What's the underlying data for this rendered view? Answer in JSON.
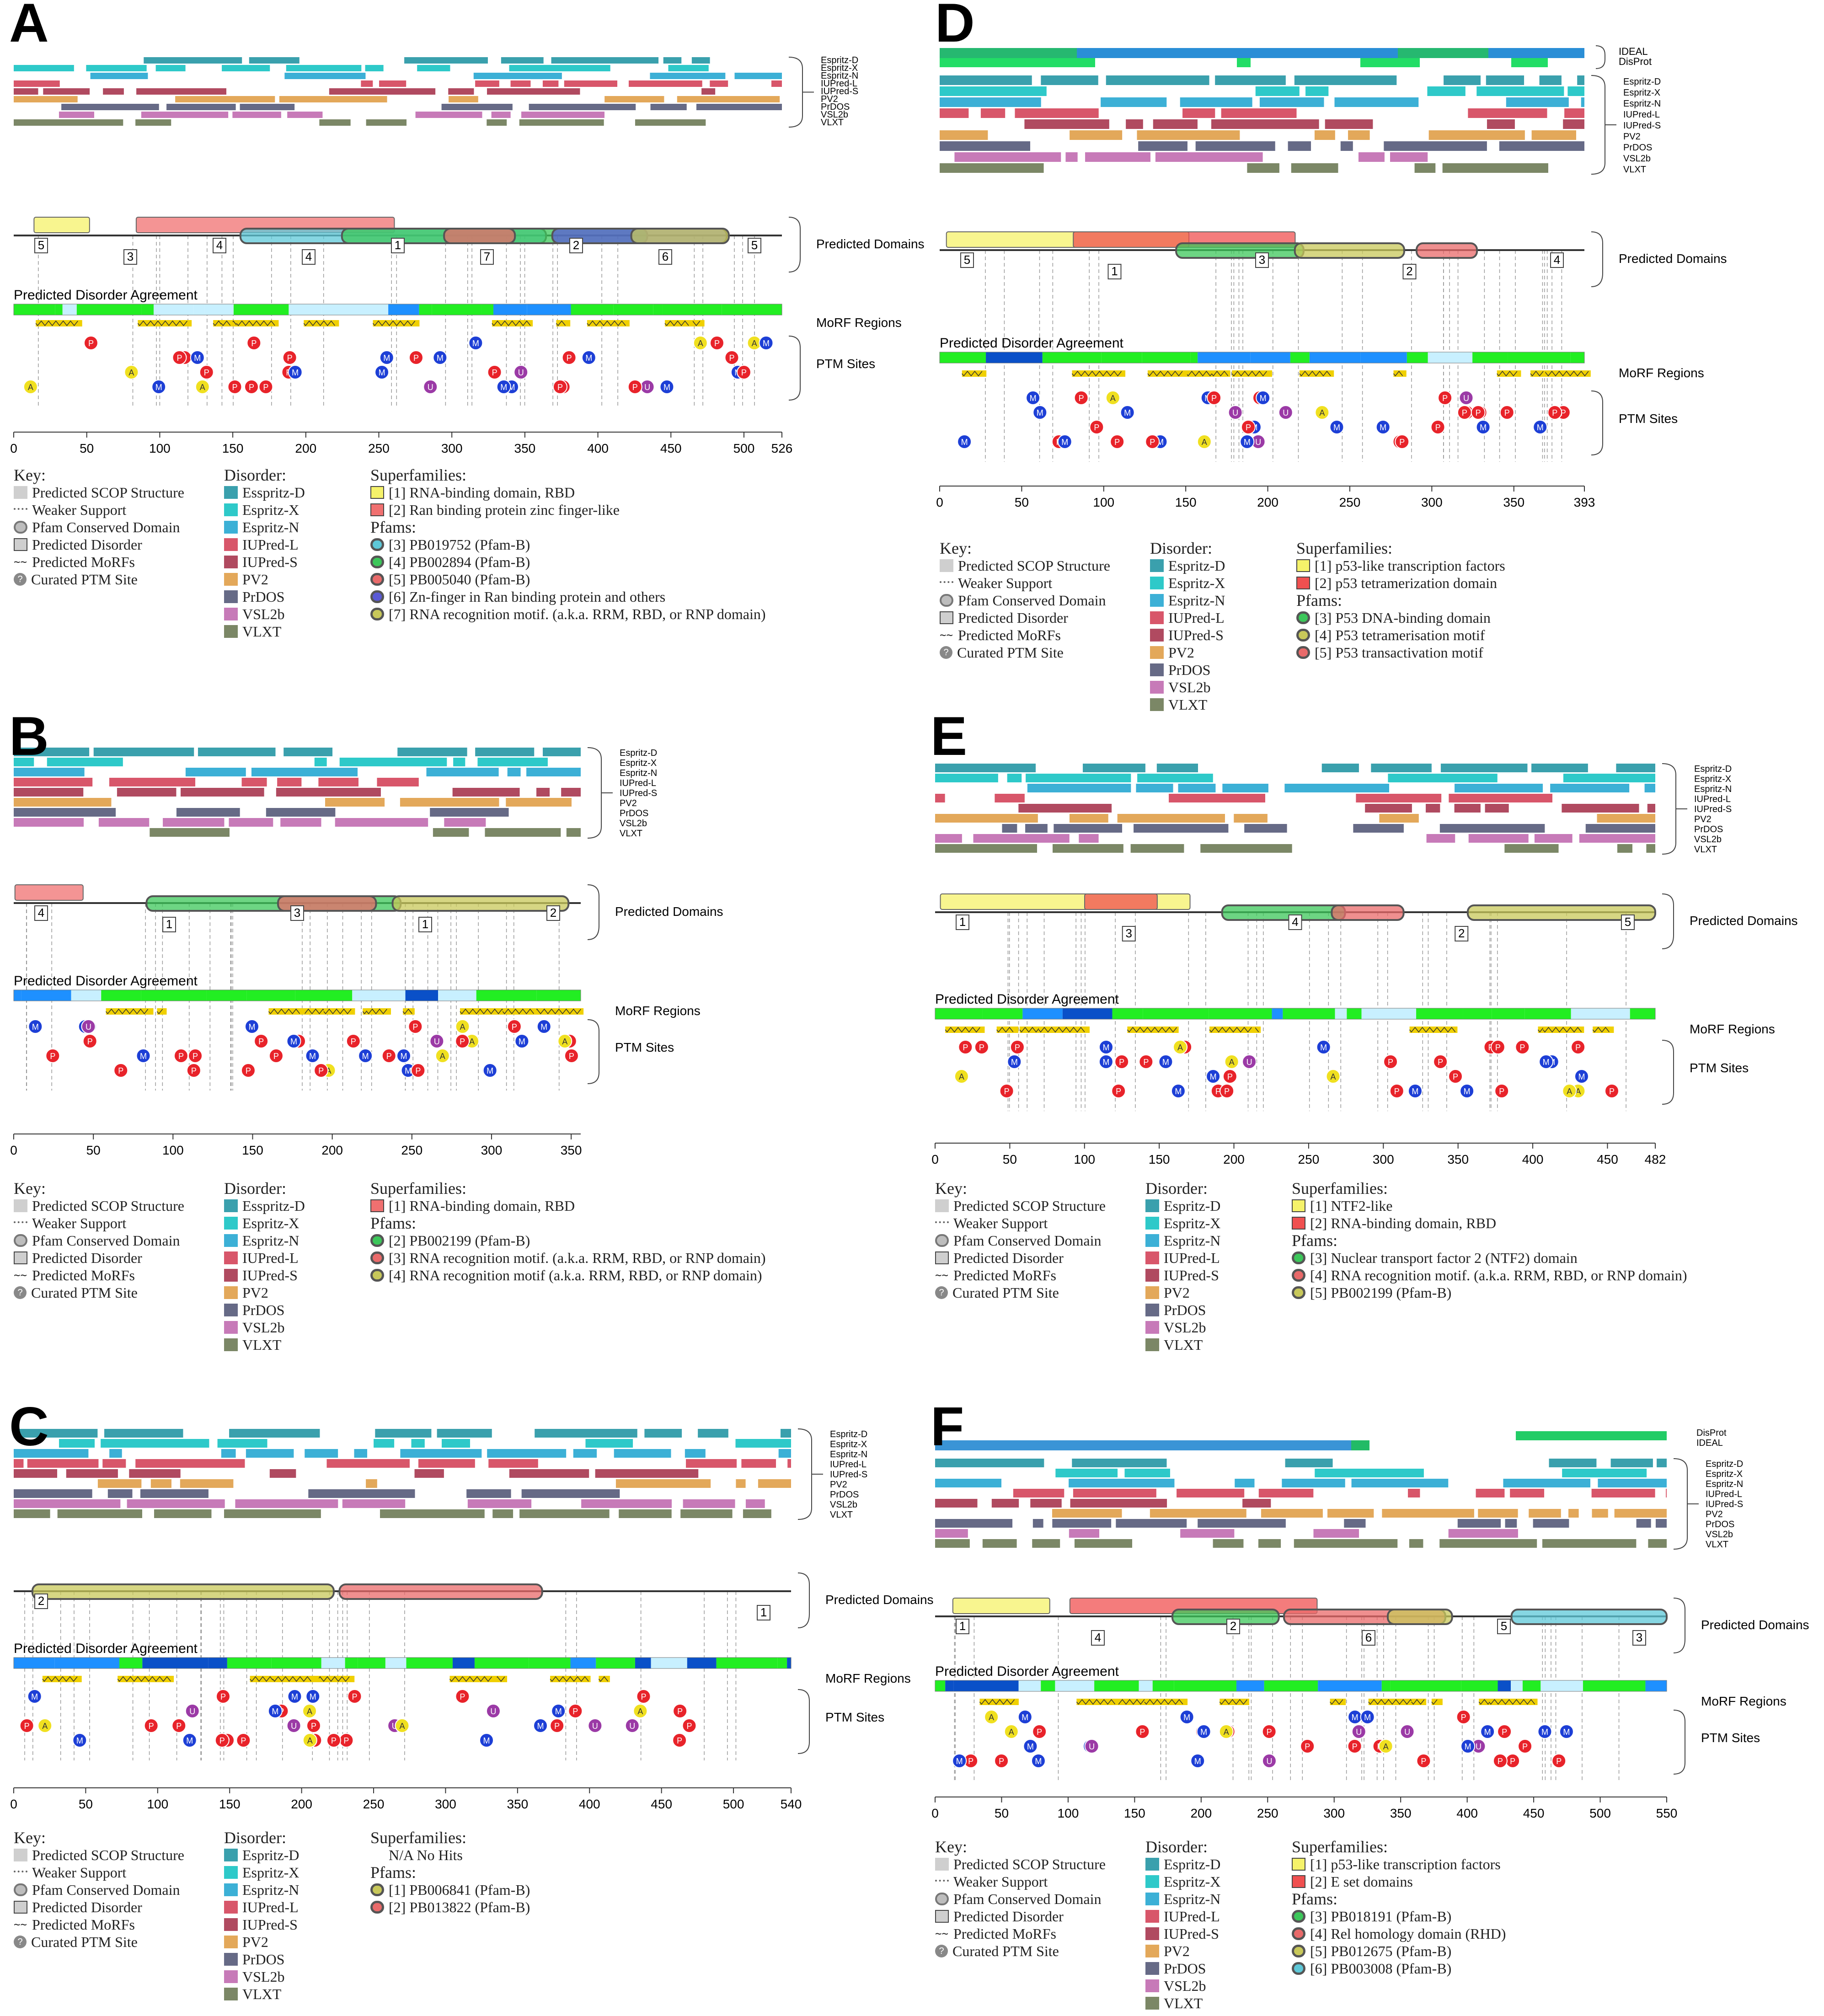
{
  "panels": [
    {
      "letter": "A",
      "length_label": "526",
      "ticks": [
        "0",
        "50",
        "100",
        "150",
        "200",
        "250",
        "300",
        "350",
        "400",
        "450",
        "500",
        "526"
      ],
      "predictors": [
        "Espritz-D",
        "Espritz-X",
        "Espritz-N",
        "IUPred-L",
        "IUPred-S",
        "PV2",
        "PrDOS",
        "VSL2b",
        "VLXT"
      ],
      "labels": {
        "domains": "Predicted Domains",
        "agreement": "Predicted Disorder Agreement",
        "morf": "MoRF Regions",
        "ptm": "PTM Sites"
      },
      "key": {
        "title": "Key:",
        "items": [
          "Predicted SCOP Structure",
          "Weaker Support",
          "Pfam Conserved Domain",
          "Predicted Disorder",
          "Predicted MoRFs",
          "Curated PTM Site"
        ],
        "disorder_title": "Disorder:",
        "disorder_items": [
          "Esspritz-D",
          "Espritz-X",
          "Espritz-N",
          "IUPred-L",
          "IUPred-S",
          "PV2",
          "PrDOS",
          "VSL2b",
          "VLXT"
        ]
      },
      "superfamilies_title": "Superfamilies:",
      "superfamilies": [
        {
          "label": "[1] RNA-binding domain, RBD",
          "color": "#f5f26a"
        },
        {
          "label": "[2] Ran binding protein zinc finger-like",
          "color": "#f07070"
        }
      ],
      "pfams_title": "Pfams:",
      "pfams": [
        {
          "label": "[3] PB019752 (Pfam-B)",
          "color": "#5ec8d8"
        },
        {
          "label": "[4] PB002894 (Pfam-B)",
          "color": "#3cc75a"
        },
        {
          "label": "[5] PB005040 (Pfam-B)",
          "color": "#e96a6a"
        },
        {
          "label": "[6] Zn-finger in Ran binding protein and others",
          "color": "#5a5ad6"
        },
        {
          "label": "[7] RNA recognition motif. (a.k.a. RRM, RBD, or RNP domain)",
          "color": "#c8c85a"
        }
      ],
      "domain_numbers": [
        "5",
        "3",
        "4",
        "4",
        "1",
        "7",
        "2",
        "6",
        "5"
      ]
    },
    {
      "letter": "B",
      "length_label": "",
      "ticks": [
        "0",
        "50",
        "100",
        "150",
        "200",
        "250",
        "300",
        "350"
      ],
      "predictors": [
        "Espritz-D",
        "Espritz-X",
        "Espritz-N",
        "IUPred-L",
        "IUPred-S",
        "PV2",
        "PrDOS",
        "VSL2b",
        "VLXT"
      ],
      "labels": {
        "domains": "Predicted Domains",
        "agreement": "Predicted Disorder Agreement",
        "morf": "MoRF Regions",
        "ptm": "PTM Sites"
      },
      "key": {
        "title": "Key:",
        "items": [
          "Predicted SCOP Structure",
          "Weaker Support",
          "Pfam Conserved Domain",
          "Predicted Disorder",
          "Predicted MoRFs",
          "Curated PTM Site"
        ],
        "disorder_title": "Disorder:",
        "disorder_items": [
          "Esspritz-D",
          "Espritz-X",
          "Espritz-N",
          "IUPred-L",
          "IUPred-S",
          "PV2",
          "PrDOS",
          "VSL2b",
          "VLXT"
        ]
      },
      "superfamilies_title": "Superfamilies:",
      "superfamilies": [
        {
          "label": "[1] RNA-binding domain, RBD",
          "color": "#f07070"
        }
      ],
      "pfams_title": "Pfams:",
      "pfams": [
        {
          "label": "[2] PB002199 (Pfam-B)",
          "color": "#3cc75a"
        },
        {
          "label": "[3] RNA recognition motif. (a.k.a. RRM, RBD, or RNP domain)",
          "color": "#e96a6a"
        },
        {
          "label": "[4] RNA recognition motif (a.k.a. RRM, RBD, or RNP domain)",
          "color": "#c8c85a"
        }
      ],
      "domain_numbers": [
        "4",
        "1",
        "3",
        "1",
        "2"
      ]
    },
    {
      "letter": "C",
      "length_label": "540",
      "ticks": [
        "0",
        "50",
        "100",
        "150",
        "200",
        "250",
        "300",
        "350",
        "400",
        "450",
        "500",
        "540"
      ],
      "predictors": [
        "Espritz-D",
        "Espritz-X",
        "Espritz-N",
        "IUPred-L",
        "IUPred-S",
        "PV2",
        "PrDOS",
        "VSL2b",
        "VLXT"
      ],
      "labels": {
        "domains": "Predicted Domains",
        "agreement": "Predicted Disorder Agreement",
        "morf": "MoRF Regions",
        "ptm": "PTM Sites"
      },
      "key": {
        "title": "Key:",
        "items": [
          "Predicted SCOP Structure",
          "Weaker Support",
          "Pfam Conserved Domain",
          "Predicted Disorder",
          "Predicted MoRFs",
          "Curated PTM Site"
        ],
        "disorder_title": "Disorder:",
        "disorder_items": [
          "Espritz-D",
          "Espritz-X",
          "Espritz-N",
          "IUPred-L",
          "IUPred-S",
          "PV2",
          "PrDOS",
          "VSL2b",
          "VLXT"
        ]
      },
      "superfamilies_title": "Superfamilies:",
      "superfamilies_text": "N/A No Hits",
      "superfamilies": [],
      "pfams_title": "Pfams:",
      "pfams": [
        {
          "label": "[1] PB006841 (Pfam-B)",
          "color": "#c8c85a"
        },
        {
          "label": "[2] PB013822 (Pfam-B)",
          "color": "#e96a6a"
        }
      ],
      "domain_numbers": [
        "2",
        "1"
      ]
    },
    {
      "letter": "D",
      "length_label": "393",
      "ticks": [
        "0",
        "50",
        "100",
        "150",
        "200",
        "250",
        "300",
        "350",
        "393"
      ],
      "predictors": [
        "Espritz-D",
        "Espritz-X",
        "Espritz-N",
        "IUPred-L",
        "IUPred-S",
        "PV2",
        "PrDOS",
        "VSL2b",
        "VLXT"
      ],
      "top_tracks": [
        "IDEAL",
        "DisProt"
      ],
      "labels": {
        "domains": "Predicted Domains",
        "agreement": "Predicted Disorder Agreement",
        "morf": "MoRF Regions",
        "ptm": "PTM Sites"
      },
      "key": {
        "title": "Key:",
        "items": [
          "Predicted SCOP Structure",
          "Weaker Support",
          "Pfam Conserved Domain",
          "Predicted Disorder",
          "Predicted MoRFs",
          "Curated PTM Site"
        ],
        "disorder_title": "Disorder:",
        "disorder_items": [
          "Espritz-D",
          "Espritz-X",
          "Espritz-N",
          "IUPred-L",
          "IUPred-S",
          "PV2",
          "PrDOS",
          "VSL2b",
          "VLXT"
        ]
      },
      "superfamilies_title": "Superfamilies:",
      "superfamilies": [
        {
          "label": "[1] p53-like transcription factors",
          "color": "#f5f26a"
        },
        {
          "label": "[2] p53 tetramerization domain",
          "color": "#f05050"
        }
      ],
      "pfams_title": "Pfams:",
      "pfams": [
        {
          "label": "[3] P53 DNA-binding domain",
          "color": "#3cc75a"
        },
        {
          "label": "[4] P53 tetramerisation motif",
          "color": "#c8c85a"
        },
        {
          "label": "[5] P53 transactivation motif",
          "color": "#e96a6a"
        }
      ],
      "domain_numbers": [
        "5",
        "1",
        "3",
        "2",
        "4"
      ]
    },
    {
      "letter": "E",
      "length_label": "482",
      "ticks": [
        "0",
        "50",
        "100",
        "150",
        "200",
        "250",
        "300",
        "350",
        "400",
        "450",
        "482"
      ],
      "predictors": [
        "Espritz-D",
        "Espritz-X",
        "Espritz-N",
        "IUPred-L",
        "IUPred-S",
        "PV2",
        "PrDOS",
        "VSL2b",
        "VLXT"
      ],
      "labels": {
        "domains": "Predicted Domains",
        "agreement": "Predicted Disorder Agreement",
        "morf": "MoRF Regions",
        "ptm": "PTM Sites"
      },
      "key": {
        "title": "Key:",
        "items": [
          "Predicted SCOP Structure",
          "Weaker Support",
          "Pfam Conserved Domain",
          "Predicted Disorder",
          "Predicted MoRFs",
          "Curated PTM Site"
        ],
        "disorder_title": "Disorder:",
        "disorder_items": [
          "Espritz-D",
          "Espritz-X",
          "Espritz-N",
          "IUPred-L",
          "IUPred-S",
          "PV2",
          "PrDOS",
          "VSL2b",
          "VLXT"
        ]
      },
      "superfamilies_title": "Superfamilies:",
      "superfamilies": [
        {
          "label": "[1] NTF2-like",
          "color": "#f5f26a"
        },
        {
          "label": "[2] RNA-binding domain, RBD",
          "color": "#f05050"
        }
      ],
      "pfams_title": "Pfams:",
      "pfams": [
        {
          "label": "[3] Nuclear transport factor 2 (NTF2) domain",
          "color": "#3cc75a"
        },
        {
          "label": "[4] RNA recognition motif. (a.k.a. RRM, RBD, or RNP domain)",
          "color": "#e96a6a"
        },
        {
          "label": "[5] PB002199 (Pfam-B)",
          "color": "#c8c85a"
        }
      ],
      "domain_numbers": [
        "1",
        "3",
        "4",
        "2",
        "5"
      ]
    },
    {
      "letter": "F",
      "length_label": "550",
      "ticks": [
        "0",
        "50",
        "100",
        "150",
        "200",
        "250",
        "300",
        "350",
        "400",
        "450",
        "500",
        "550"
      ],
      "predictors": [
        "Espritz-D",
        "Espritz-X",
        "Espritz-N",
        "IUPred-L",
        "IUPred-S",
        "PV2",
        "PrDOS",
        "VSL2b",
        "VLXT"
      ],
      "top_tracks": [
        "DisProt",
        "IDEAL"
      ],
      "labels": {
        "domains": "Predicted Domains",
        "agreement": "Predicted Disorder Agreement",
        "morf": "MoRF Regions",
        "ptm": "PTM Sites"
      },
      "key": {
        "title": "Key:",
        "items": [
          "Predicted SCOP Structure",
          "Weaker Support",
          "Pfam Conserved Domain",
          "Predicted Disorder",
          "Predicted MoRFs",
          "Curated PTM Site"
        ],
        "disorder_title": "Disorder:",
        "disorder_items": [
          "Espritz-D",
          "Espritz-X",
          "Espritz-N",
          "IUPred-L",
          "IUPred-S",
          "PV2",
          "PrDOS",
          "VSL2b",
          "VLXT"
        ]
      },
      "superfamilies_title": "Superfamilies:",
      "superfamilies": [
        {
          "label": "[1] p53-like transcription factors",
          "color": "#f5f26a"
        },
        {
          "label": "[2] E set domains",
          "color": "#f05050"
        }
      ],
      "pfams_title": "Pfams:",
      "pfams": [
        {
          "label": "[3] PB018191 (Pfam-B)",
          "color": "#3cc75a"
        },
        {
          "label": "[4] Rel homology domain (RHD)",
          "color": "#e96a6a"
        },
        {
          "label": "[5] PB012675 (Pfam-B)",
          "color": "#c8c85a"
        },
        {
          "label": "[6] PB003008 (Pfam-B)",
          "color": "#5ec8d8"
        }
      ],
      "domain_numbers": [
        "1",
        "4",
        "2",
        "6",
        "5",
        "3"
      ]
    }
  ],
  "colors": {
    "Espritz-D": "#3aa0ad",
    "Espritz-X": "#2ec9c9",
    "Espritz-N": "#3cb0d6",
    "IUPred-L": "#d8566a",
    "IUPred-S": "#b04a60",
    "PV2": "#e3a85a",
    "PrDOS": "#666a86",
    "VSL2b": "#c77ab8",
    "VLXT": "#7b8766",
    "ptm_P": "#e8232a",
    "ptm_M": "#1d3fd6",
    "ptm_U": "#9b3aa6",
    "ptm_A": "#f0e020",
    "ptm_G": "#f0a030",
    "agreement_ordered": "#22ee22",
    "agreement_disordered_low": "#ffffff",
    "agreement_disordered_high": "#0a60d0",
    "morf": "#f0d000"
  }
}
